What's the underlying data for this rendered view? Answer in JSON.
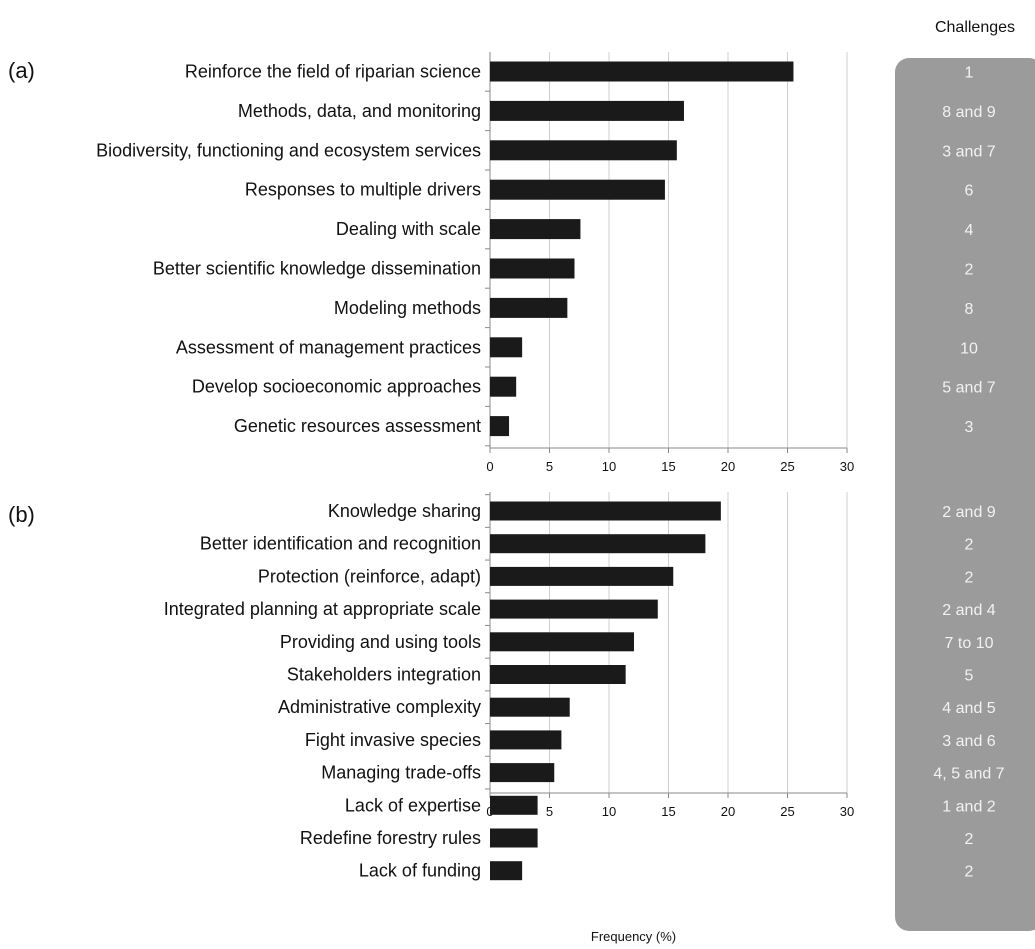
{
  "challenges_header": "Challenges",
  "chart_data": [
    {
      "type": "bar",
      "orientation": "horizontal",
      "panel_label": "(a)",
      "categories": [
        "Reinforce the field of riparian science",
        "Methods, data, and monitoring",
        "Biodiversity, functioning and ecosystem services",
        "Responses to multiple drivers",
        "Dealing with scale",
        "Better scientific knowledge dissemination",
        "Modeling methods",
        "Assessment of management practices",
        "Develop socioeconomic approaches",
        "Genetic resources assessment"
      ],
      "values": [
        25.5,
        16.3,
        15.7,
        14.7,
        7.6,
        7.1,
        6.5,
        2.7,
        2.2,
        1.6
      ],
      "challenges": [
        "1",
        "8 and 9",
        "3 and 7",
        "6",
        "4",
        "2",
        "8",
        "10",
        "5 and 7",
        "3"
      ],
      "xlim": [
        0,
        30
      ],
      "xticks": [
        0,
        5,
        10,
        15,
        20,
        25,
        30
      ],
      "xlabel": "",
      "grid": "vertical",
      "bar_color": "#1a1a1a"
    },
    {
      "type": "bar",
      "orientation": "horizontal",
      "panel_label": "(b)",
      "categories": [
        "Knowledge sharing",
        "Better identification and recognition",
        "Protection (reinforce, adapt)",
        "Integrated planning at appropriate scale",
        "Providing and using tools",
        "Stakeholders integration",
        "Administrative complexity",
        "Fight invasive species",
        "Managing trade-offs",
        "Lack of expertise",
        "Redefine forestry rules",
        "Lack of funding"
      ],
      "values": [
        19.4,
        18.1,
        15.4,
        14.1,
        12.1,
        11.4,
        6.7,
        6.0,
        5.4,
        4.0,
        4.0,
        2.7
      ],
      "challenges": [
        "2 and 9",
        "2",
        "2",
        "2 and 4",
        "7 to 10",
        "5",
        "4 and 5",
        "3 and 6",
        "4, 5 and 7",
        "1 and 2",
        "2",
        "2"
      ],
      "xlim": [
        0,
        30
      ],
      "xticks": [
        0,
        5,
        10,
        15,
        20,
        25,
        30
      ],
      "xlabel": "Frequency (%)",
      "grid": "vertical",
      "bar_color": "#1a1a1a"
    }
  ],
  "challenges_box_color": "#9b9b9b"
}
